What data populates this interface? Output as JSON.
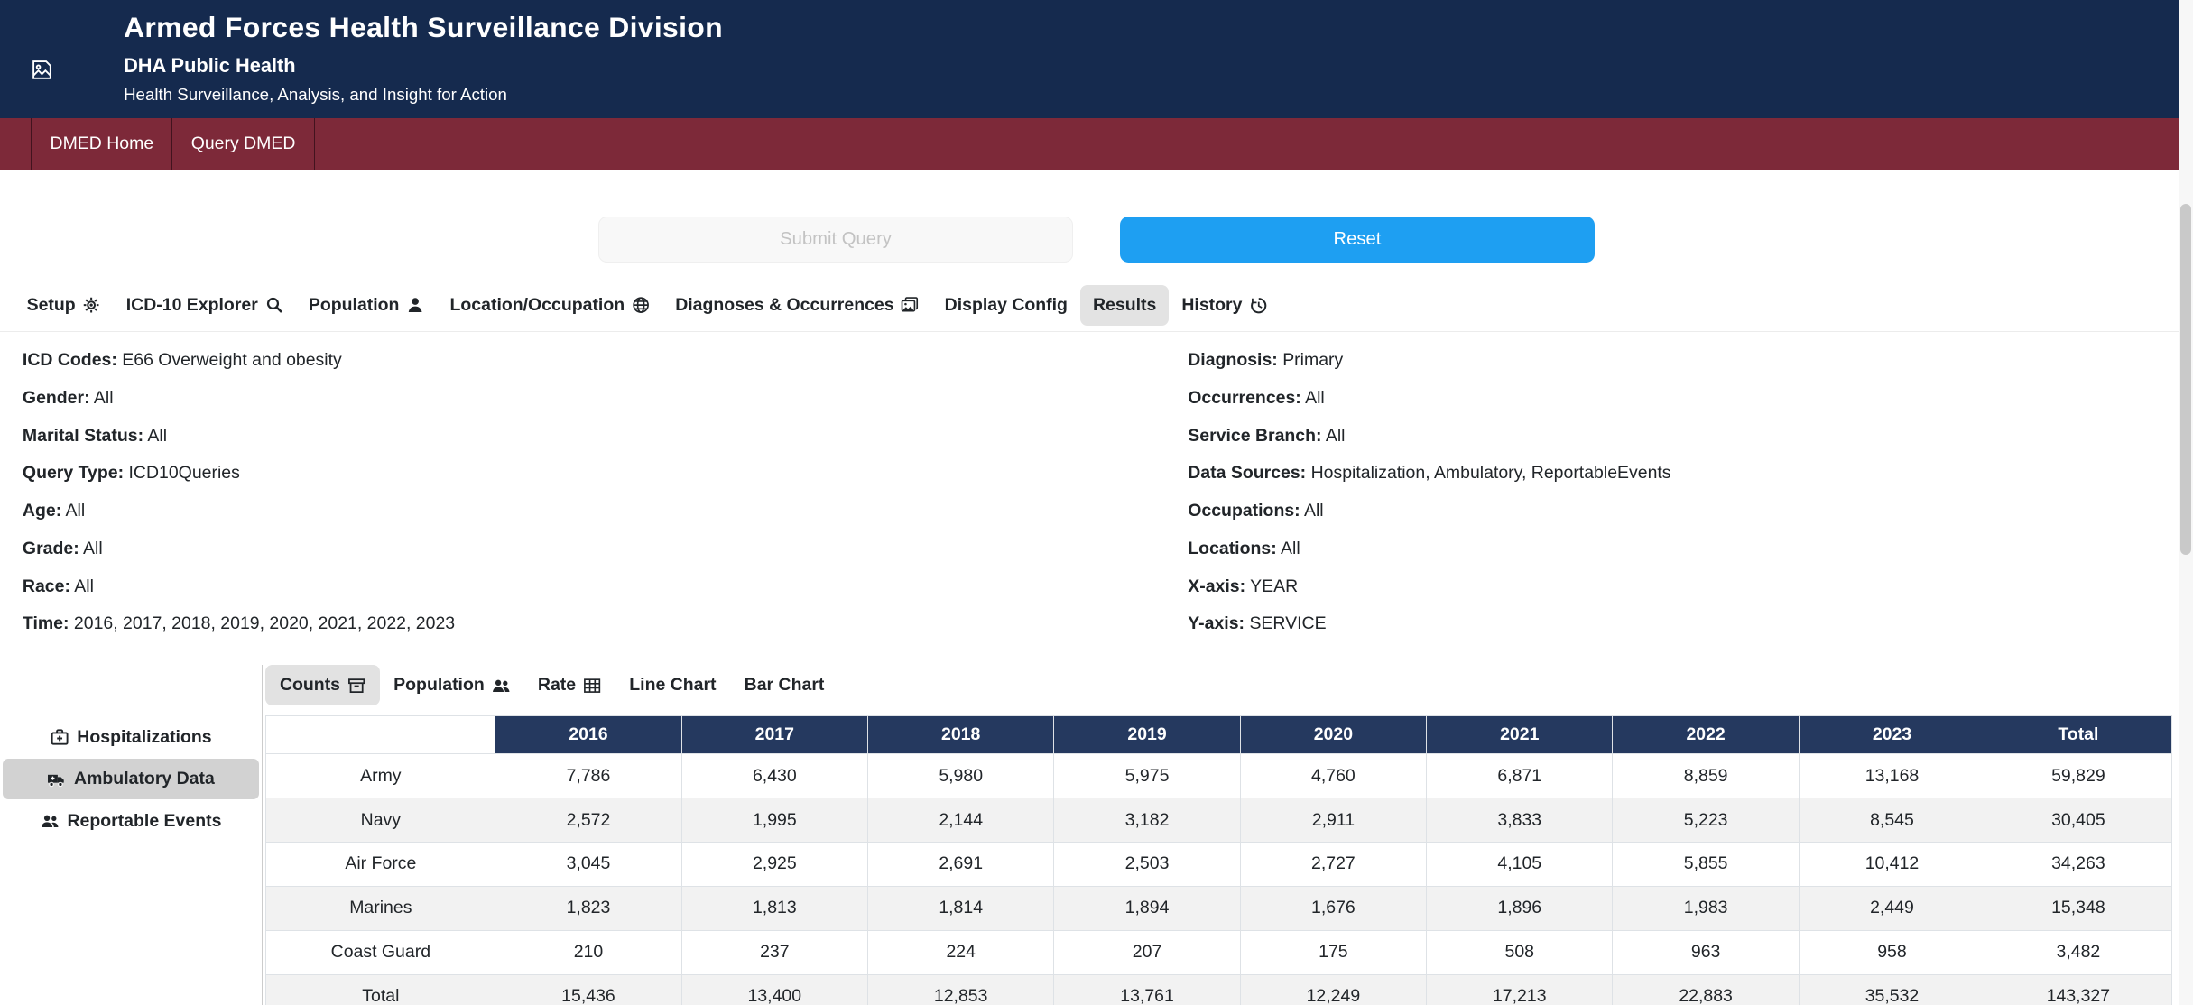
{
  "header": {
    "title": "Armed Forces Health Surveillance Division",
    "subtitle": "DHA Public Health",
    "tagline": "Health Surveillance, Analysis, and Insight for Action"
  },
  "nav": {
    "items": [
      {
        "label": "DMED Home"
      },
      {
        "label": "Query DMED"
      }
    ]
  },
  "actions": {
    "submit_label": "Submit Query",
    "reset_label": "Reset"
  },
  "tabs": [
    {
      "label": "Setup",
      "icon": "gear-icon",
      "active": false
    },
    {
      "label": "ICD-10 Explorer",
      "icon": "search-icon",
      "active": false
    },
    {
      "label": "Population",
      "icon": "person-icon",
      "active": false
    },
    {
      "label": "Location/Occupation",
      "icon": "globe-icon",
      "active": false
    },
    {
      "label": "Diagnoses & Occurrences",
      "icon": "images-icon",
      "active": false
    },
    {
      "label": "Display Config",
      "active": false
    },
    {
      "label": "Results",
      "active": true
    },
    {
      "label": "History",
      "icon": "history-icon",
      "active": false
    }
  ],
  "summary": {
    "left": [
      {
        "label": "ICD Codes:",
        "value": "E66 Overweight and obesity"
      },
      {
        "label": "Gender:",
        "value": "All"
      },
      {
        "label": "Marital Status:",
        "value": "All"
      },
      {
        "label": "Query Type:",
        "value": "ICD10Queries"
      },
      {
        "label": "Age:",
        "value": "All"
      },
      {
        "label": "Grade:",
        "value": "All"
      },
      {
        "label": "Race:",
        "value": "All"
      },
      {
        "label": "Time:",
        "value": "2016, 2017, 2018, 2019, 2020, 2021, 2022, 2023"
      }
    ],
    "right": [
      {
        "label": "Diagnosis:",
        "value": "Primary"
      },
      {
        "label": "Occurrences:",
        "value": "All"
      },
      {
        "label": "Service Branch:",
        "value": "All"
      },
      {
        "label": "Data Sources:",
        "value": "Hospitalization, Ambulatory, ReportableEvents"
      },
      {
        "label": "Occupations:",
        "value": "All"
      },
      {
        "label": "Locations:",
        "value": "All"
      },
      {
        "label": "X-axis:",
        "value": "YEAR"
      },
      {
        "label": "Y-axis:",
        "value": "SERVICE"
      }
    ]
  },
  "sidebar": {
    "items": [
      {
        "label": "Hospitalizations",
        "icon": "hospital-icon",
        "active": false
      },
      {
        "label": "Ambulatory Data",
        "icon": "ambulance-icon",
        "active": true
      },
      {
        "label": "Reportable Events",
        "icon": "people-icon",
        "active": false
      }
    ]
  },
  "subtabs": [
    {
      "label": "Counts",
      "icon": "archive-icon",
      "active": true
    },
    {
      "label": "Population",
      "icon": "people-icon",
      "active": false
    },
    {
      "label": "Rate",
      "icon": "table-icon",
      "active": false
    },
    {
      "label": "Line Chart",
      "active": false
    },
    {
      "label": "Bar Chart",
      "active": false
    }
  ],
  "results_table": {
    "columns": [
      "",
      "2016",
      "2017",
      "2018",
      "2019",
      "2020",
      "2021",
      "2022",
      "2023",
      "Total"
    ],
    "rows": [
      [
        "Army",
        "7,786",
        "6,430",
        "5,980",
        "5,975",
        "4,760",
        "6,871",
        "8,859",
        "13,168",
        "59,829"
      ],
      [
        "Navy",
        "2,572",
        "1,995",
        "2,144",
        "3,182",
        "2,911",
        "3,833",
        "5,223",
        "8,545",
        "30,405"
      ],
      [
        "Air Force",
        "3,045",
        "2,925",
        "2,691",
        "2,503",
        "2,727",
        "4,105",
        "5,855",
        "10,412",
        "34,263"
      ],
      [
        "Marines",
        "1,823",
        "1,813",
        "1,814",
        "1,894",
        "1,676",
        "1,896",
        "1,983",
        "2,449",
        "15,348"
      ],
      [
        "Coast Guard",
        "210",
        "237",
        "224",
        "207",
        "175",
        "508",
        "963",
        "958",
        "3,482"
      ],
      [
        "Total",
        "15,436",
        "13,400",
        "12,853",
        "13,761",
        "12,249",
        "17,213",
        "22,883",
        "35,532",
        "143,327"
      ]
    ]
  },
  "colors": {
    "header_navy": "#152a4e",
    "nav_maroon": "#7d2939",
    "reset_blue": "#1e9ff2",
    "table_navy": "#25395f"
  }
}
